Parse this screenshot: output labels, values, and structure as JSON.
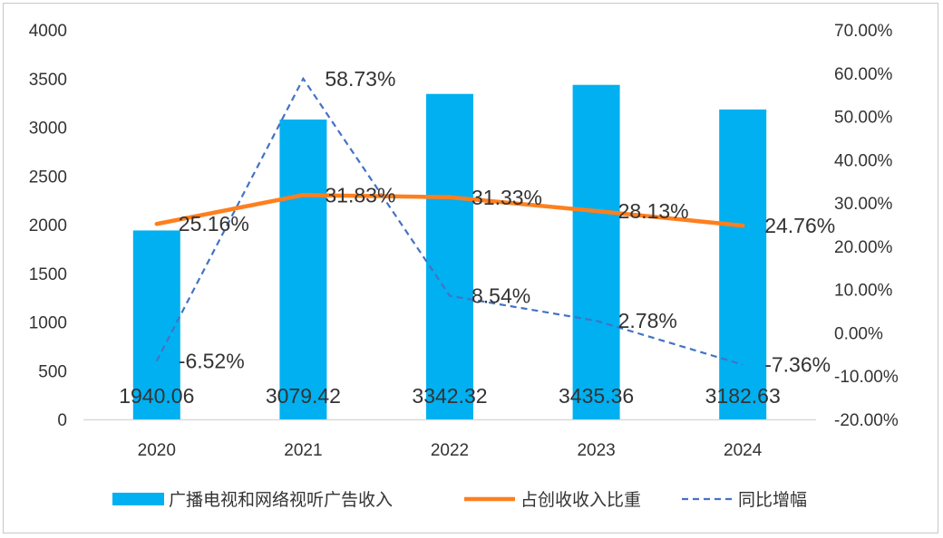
{
  "chart_data": {
    "type": "bar",
    "categories": [
      "2020",
      "2021",
      "2022",
      "2023",
      "2024"
    ],
    "series": [
      {
        "name": "广播电视和网络视听广告收入",
        "type": "bar",
        "axis": "left",
        "color": "#00b0f0",
        "values": [
          1940.06,
          3079.42,
          3342.32,
          3435.36,
          3182.63
        ],
        "labels": [
          "1940.06",
          "3079.42",
          "3342.32",
          "3435.36",
          "3182.63"
        ]
      },
      {
        "name": "占创收收入比重",
        "type": "line",
        "axis": "right",
        "color": "#ff7f1e",
        "values": [
          25.16,
          31.83,
          31.33,
          28.13,
          24.76
        ],
        "labels": [
          "25.16%",
          "31.83%",
          "31.33%",
          "28.13%",
          "24.76%"
        ]
      },
      {
        "name": "同比增幅",
        "type": "line",
        "style": "dashed",
        "axis": "right",
        "color": "#4472c4",
        "values": [
          -6.52,
          58.73,
          8.54,
          2.78,
          -7.36
        ],
        "labels": [
          "-6.52%",
          "58.73%",
          "8.54%",
          "2.78%",
          "-7.36%"
        ]
      }
    ],
    "y_left": {
      "ylim": [
        0,
        4000
      ],
      "ticks": [
        "0",
        "500",
        "1000",
        "1500",
        "2000",
        "2500",
        "3000",
        "3500",
        "4000"
      ]
    },
    "y_right": {
      "ylim": [
        -20,
        70
      ],
      "ticks": [
        "-20.00%",
        "-10.00%",
        "0.00%",
        "10.00%",
        "20.00%",
        "30.00%",
        "40.00%",
        "50.00%",
        "60.00%",
        "70.00%"
      ]
    },
    "grid": false,
    "legend_position": "bottom"
  }
}
